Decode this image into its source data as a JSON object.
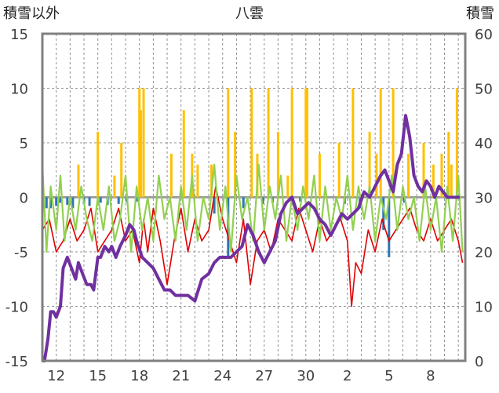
{
  "chart_data": {
    "type": "line",
    "title": "八雲",
    "left_axis_label": "積雪以外",
    "right_axis_label": "積雪",
    "ylim_left": [
      -15,
      15
    ],
    "ylim_right": [
      0,
      60
    ],
    "left_ticks": [
      "15",
      "10",
      "5",
      "0",
      "-5",
      "-10",
      "-15"
    ],
    "right_ticks": [
      "60",
      "50",
      "40",
      "30",
      "20",
      "10",
      "0"
    ],
    "x_ticks": [
      "12",
      "15",
      "18",
      "21",
      "24",
      "27",
      "30",
      "2",
      "5",
      "8"
    ],
    "x_domain": [
      0,
      30.5
    ],
    "x_tick_positions": [
      1,
      4,
      7,
      10,
      13,
      16,
      19,
      22,
      25,
      28
    ],
    "grid": true,
    "colors": {
      "snow_depth": "#7030A0",
      "temp_red": "#E00000",
      "temp_green": "#92D050",
      "precip": "#FFC000",
      "wind_blue": "#2E75B6",
      "frame": "#808080",
      "grid": "#909090"
    },
    "series": [
      {
        "key": "snow_depth",
        "axis": "right",
        "x": [
          0,
          0.15,
          0.4,
          0.6,
          0.8,
          1.0,
          1.3,
          1.5,
          1.8,
          2.1,
          2.4,
          2.6,
          2.9,
          3.2,
          3.5,
          3.7,
          4.0,
          4.2,
          4.5,
          4.8,
          5.0,
          5.3,
          5.6,
          6.0,
          6.3,
          6.6,
          6.8,
          7.2,
          7.6,
          8.0,
          8.4,
          8.8,
          9.2,
          9.6,
          10.0,
          10.5,
          11.0,
          11.5,
          12.0,
          12.4,
          12.8,
          13.2,
          13.6,
          14.0,
          14.4,
          14.8,
          15.2,
          15.6,
          16.0,
          16.4,
          16.8,
          17.2,
          17.6,
          18.0,
          18.4,
          18.8,
          19.2,
          19.6,
          20.0,
          20.4,
          20.8,
          21.2,
          21.6,
          22.0,
          22.4,
          22.8,
          23.2,
          23.6,
          24.0,
          24.4,
          24.7,
          25.0,
          25.3,
          25.6,
          25.9,
          26.2,
          26.5,
          26.8,
          27.1,
          27.4,
          27.7,
          28.0,
          28.3,
          28.6,
          28.9,
          29.2,
          29.5,
          29.8,
          30.1
        ],
        "values": [
          0,
          0,
          4,
          9,
          9,
          8,
          10,
          17,
          19,
          17,
          15,
          18,
          16,
          14,
          14,
          13,
          19,
          19,
          21,
          20,
          21,
          19,
          21,
          23,
          25,
          24,
          22,
          19,
          18,
          17,
          15,
          13,
          13,
          12,
          12,
          12,
          11,
          15,
          16,
          18,
          19,
          19,
          19,
          20,
          21,
          25,
          23,
          20,
          18,
          20,
          22,
          27,
          29,
          30,
          27,
          28,
          29,
          28,
          26,
          25,
          23,
          25,
          27,
          26,
          27,
          28,
          31,
          30,
          32,
          34,
          35,
          33,
          31,
          36,
          38,
          45,
          41,
          34,
          32,
          31,
          33,
          32,
          30,
          32,
          31,
          30,
          30,
          30,
          30
        ]
      },
      {
        "key": "temp_red",
        "axis": "left",
        "x": [
          0,
          0.5,
          1.0,
          1.5,
          2.0,
          2.5,
          3.0,
          3.5,
          4.0,
          4.5,
          5.0,
          5.5,
          6.0,
          6.5,
          7.0,
          7.3,
          7.6,
          8.0,
          8.5,
          9.0,
          9.5,
          10.0,
          10.5,
          11.0,
          11.5,
          12.0,
          12.5,
          13.0,
          13.5,
          14.0,
          14.5,
          15.0,
          15.5,
          16.0,
          16.5,
          17.0,
          17.5,
          18.0,
          18.5,
          19.0,
          19.5,
          20.0,
          20.5,
          21.0,
          21.5,
          22.0,
          22.3,
          22.6,
          23.0,
          23.5,
          24.0,
          24.5,
          25.0,
          25.5,
          26.0,
          26.5,
          27.0,
          27.5,
          28.0,
          28.5,
          29.0,
          29.5,
          30.0,
          30.3
        ],
        "values": [
          -3,
          -2,
          -5,
          -4,
          -2,
          -4,
          -3,
          -1,
          -5,
          -4,
          -3,
          -1,
          -4,
          -3,
          -6,
          -2,
          -5,
          -1,
          -4,
          -8,
          -4,
          -1,
          -5,
          -2,
          -4,
          -3,
          1,
          -2,
          -4,
          -6,
          -2,
          -8,
          -4,
          -3,
          -5,
          -2,
          -3,
          -4,
          -1,
          -3,
          -5,
          -2,
          -4,
          -3,
          -2,
          -4,
          -10,
          -6,
          -7,
          -3,
          -5,
          -2,
          -4,
          -3,
          -2,
          -1,
          -3,
          -4,
          -2,
          -4,
          -3,
          -2,
          -4,
          -6
        ]
      },
      {
        "key": "temp_green",
        "axis": "left",
        "x": [
          0,
          0.3,
          0.6,
          1.0,
          1.3,
          1.6,
          2.0,
          2.4,
          2.8,
          3.2,
          3.6,
          4.0,
          4.4,
          4.8,
          5.2,
          5.6,
          6.0,
          6.4,
          6.8,
          7.2,
          7.6,
          8.0,
          8.4,
          8.8,
          9.2,
          9.6,
          10.0,
          10.4,
          10.8,
          11.2,
          11.6,
          12.0,
          12.4,
          12.8,
          13.2,
          13.6,
          14.0,
          14.4,
          14.8,
          15.2,
          15.6,
          16.0,
          16.4,
          16.8,
          17.2,
          17.6,
          18.0,
          18.4,
          18.8,
          19.2,
          19.6,
          20.0,
          20.4,
          20.8,
          21.2,
          21.6,
          22.0,
          22.4,
          22.8,
          23.2,
          23.6,
          24.0,
          24.4,
          24.8,
          25.2,
          25.6,
          26.0,
          26.4,
          26.8,
          27.2,
          27.6,
          28.0,
          28.4,
          28.8,
          29.2,
          29.6,
          30.0,
          30.3
        ],
        "values": [
          3,
          -5,
          1,
          -3,
          2,
          -4,
          0,
          -3,
          1,
          -2,
          -4,
          0,
          -3,
          1,
          -4,
          -2,
          2,
          -5,
          1,
          -3,
          0,
          -4,
          2,
          -2,
          0,
          -4,
          1,
          -3,
          2,
          -4,
          0,
          -2,
          3,
          -3,
          1,
          -5,
          2,
          -2,
          0,
          -4,
          3,
          -3,
          1,
          -2,
          2,
          -4,
          0,
          -3,
          1,
          -2,
          2,
          -4,
          1,
          -3,
          0,
          -2,
          2,
          -3,
          1,
          -2,
          1,
          -4,
          0,
          -2,
          2,
          -3,
          1,
          -2,
          0,
          -4,
          1,
          -3,
          0,
          -5,
          1,
          -4,
          2,
          -5
        ]
      },
      {
        "key": "precip",
        "axis": "left",
        "x": [
          2.6,
          4.0,
          5.2,
          5.7,
          7.0,
          7.1,
          7.3,
          9.3,
          10.2,
          10.8,
          11.2,
          12.2,
          13.4,
          13.9,
          15.1,
          15.5,
          16.3,
          17.0,
          17.7,
          18.0,
          19.0,
          19.1,
          20.0,
          21.4,
          22.4,
          23.6,
          24.1,
          24.4,
          25.3,
          26.4,
          27.5,
          28.2,
          28.8,
          29.3,
          29.5,
          29.9
        ],
        "values": [
          3,
          6,
          2,
          5,
          10,
          8,
          10,
          4,
          8,
          4,
          3,
          3,
          10,
          6,
          10,
          4,
          10,
          6,
          2,
          10,
          10,
          10,
          4,
          5,
          10,
          6,
          4,
          10,
          10,
          4,
          5,
          3,
          4,
          6,
          3,
          10
        ]
      },
      {
        "key": "wind_blue",
        "axis": "left",
        "x": [
          0.3,
          0.6,
          1.0,
          1.3,
          1.8,
          2.2,
          3.0,
          3.4,
          4.2,
          4.7,
          5.5,
          6.1,
          6.8,
          12.4,
          13.4,
          14.5,
          15.9,
          16.6,
          18.6,
          21.8,
          22.9,
          24.6,
          25.0,
          26.1
        ],
        "values": [
          -1,
          -1,
          -0.8,
          -0.5,
          -0.7,
          -1,
          -0.6,
          -0.8,
          -0.5,
          -0.7,
          -0.6,
          -0.5,
          -0.4,
          -1.5,
          -5.5,
          -1,
          -0.6,
          -0.5,
          -0.4,
          -0.6,
          -1,
          -3,
          -5.5,
          -0.5
        ]
      }
    ]
  }
}
